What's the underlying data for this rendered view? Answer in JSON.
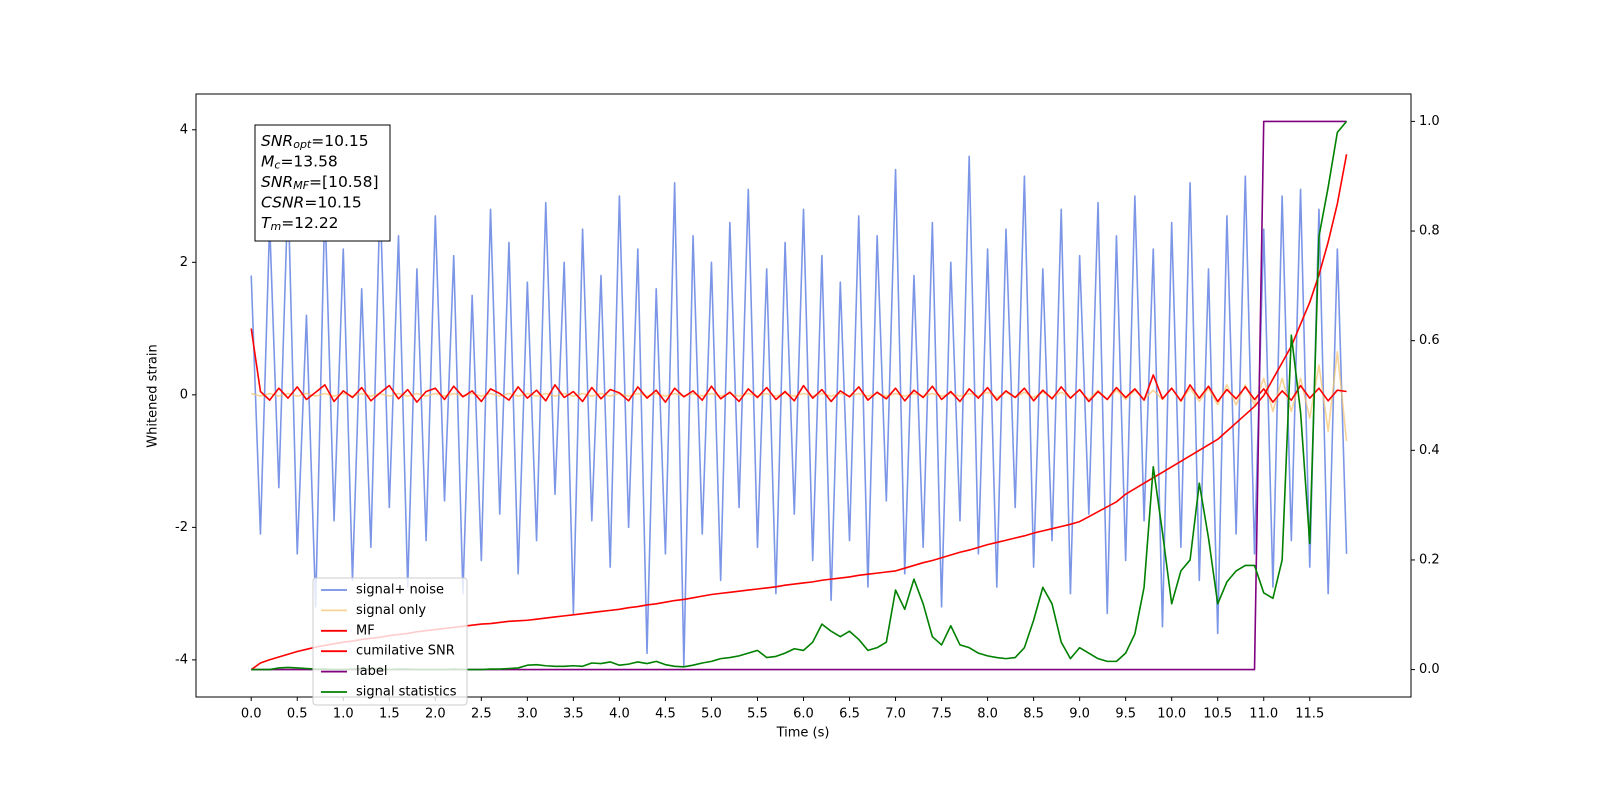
{
  "chart_data": {
    "type": "line",
    "xlabel": "Time (s)",
    "ylabel": "Whitened strain",
    "xlim": [
      -0.6,
      12.6
    ],
    "ylim": [
      -4.56,
      4.54
    ],
    "y2lim": [
      -0.05,
      1.05
    ],
    "xticks": [
      {
        "value": 0,
        "label": "0.0"
      },
      0.5,
      {
        "value": 1,
        "label": "1.0"
      },
      1.5,
      {
        "value": 2,
        "label": "2.0"
      },
      2.5,
      {
        "value": 3,
        "label": "3.0"
      },
      3.5,
      {
        "value": 4,
        "label": "4.0"
      },
      4.5,
      {
        "value": 5,
        "label": "5.0"
      },
      5.5,
      {
        "value": 6,
        "label": "6.0"
      },
      6.5,
      {
        "value": 7,
        "label": "7.0"
      },
      7.5,
      {
        "value": 8,
        "label": "8.0"
      },
      8.5,
      {
        "value": 9,
        "label": "9.0"
      },
      9.5,
      {
        "value": 10,
        "label": "10.0"
      },
      10.5,
      {
        "value": 11,
        "label": "11.0"
      },
      11.5
    ],
    "yticks": [
      -4,
      -2,
      0,
      2,
      4
    ],
    "y2ticks": [
      {
        "value": 0,
        "label": "0.0"
      },
      0.2,
      0.4,
      0.6,
      0.8,
      {
        "value": 1,
        "label": "1.0"
      }
    ],
    "legend": "best",
    "annotation": [
      {
        "symbol": "SNR",
        "subscript": "opt",
        "text": "=10.15"
      },
      {
        "symbol": "M",
        "subscript": "c",
        "text": "=13.58"
      },
      {
        "symbol": "SNR",
        "subscript": "MF",
        "text": "=[10.58]"
      },
      {
        "symbol": "CSNR",
        "text": "=10.15"
      },
      {
        "symbol": "T",
        "subscript": "m",
        "text": "=12.22"
      }
    ],
    "x": [
      0.0,
      0.1,
      0.2,
      0.3,
      0.4,
      0.5,
      0.6,
      0.7,
      0.8,
      0.9,
      1.0,
      1.1,
      1.2,
      1.3,
      1.4,
      1.5,
      1.6,
      1.7,
      1.8,
      1.9,
      2.0,
      2.1,
      2.2,
      2.3,
      2.4,
      2.5,
      2.6,
      2.7,
      2.8,
      2.9,
      3.0,
      3.1,
      3.2,
      3.3,
      3.4,
      3.5,
      3.6,
      3.7,
      3.8,
      3.9,
      4.0,
      4.1,
      4.2,
      4.3,
      4.4,
      4.5,
      4.6,
      4.7,
      4.8,
      4.9,
      5.0,
      5.1,
      5.2,
      5.3,
      5.4,
      5.5,
      5.6,
      5.7,
      5.8,
      5.9,
      6.0,
      6.1,
      6.2,
      6.3,
      6.4,
      6.5,
      6.6,
      6.7,
      6.8,
      6.9,
      7.0,
      7.1,
      7.2,
      7.3,
      7.4,
      7.5,
      7.6,
      7.7,
      7.8,
      7.9,
      8.0,
      8.1,
      8.2,
      8.3,
      8.4,
      8.5,
      8.6,
      8.7,
      8.8,
      8.9,
      9.0,
      9.1,
      9.2,
      9.3,
      9.4,
      9.5,
      9.6,
      9.7,
      9.8,
      9.9,
      10.0,
      10.1,
      10.2,
      10.3,
      10.4,
      10.5,
      10.6,
      10.7,
      10.8,
      10.9,
      11.0,
      11.1,
      11.2,
      11.3,
      11.4,
      11.5,
      11.6,
      11.7,
      11.8,
      11.9
    ],
    "series": [
      {
        "name": "signal+ noise",
        "color": "#7590e6",
        "values": [
          1.8,
          -2.1,
          2.6,
          -1.4,
          3.1,
          -2.4,
          1.2,
          -3.2,
          2.9,
          -1.9,
          2.2,
          -2.8,
          1.6,
          -2.3,
          3.0,
          -1.7,
          2.4,
          -2.9,
          1.9,
          -2.2,
          2.7,
          -1.6,
          2.1,
          -3.0,
          1.5,
          -2.5,
          2.8,
          -1.8,
          2.3,
          -2.7,
          1.7,
          -2.2,
          2.9,
          -1.5,
          2.0,
          -3.3,
          2.5,
          -1.9,
          1.8,
          -2.6,
          3.0,
          -2.0,
          2.2,
          -3.9,
          1.6,
          -2.4,
          3.2,
          -4.1,
          2.4,
          -2.1,
          2.0,
          -2.8,
          2.6,
          -1.7,
          3.1,
          -2.3,
          1.9,
          -3.0,
          2.3,
          -1.8,
          2.8,
          -2.5,
          2.1,
          -3.1,
          1.7,
          -2.2,
          2.7,
          -2.9,
          2.4,
          -1.6,
          3.4,
          -2.7,
          1.8,
          -2.3,
          2.6,
          -3.2,
          2.0,
          -1.9,
          3.6,
          -2.4,
          2.2,
          -2.9,
          2.5,
          -1.7,
          3.3,
          -2.6,
          1.9,
          -2.2,
          2.8,
          -3.0,
          2.1,
          -1.8,
          2.9,
          -3.3,
          2.4,
          -2.5,
          3.0,
          -1.9,
          2.2,
          -3.5,
          2.6,
          -2.3,
          3.2,
          -2.8,
          1.9,
          -3.6,
          2.7,
          -2.1,
          3.3,
          -2.4,
          2.5,
          -2.9,
          3.0,
          -2.2,
          3.1,
          -2.6,
          2.8,
          -3.0,
          2.2,
          -2.4
        ]
      },
      {
        "name": "signal only",
        "color": "#f5c26b",
        "values": [
          0.02,
          -0.02,
          0.02,
          -0.02,
          0.02,
          -0.02,
          0.02,
          -0.02,
          0.02,
          -0.02,
          0.02,
          -0.02,
          0.02,
          -0.02,
          0.02,
          -0.02,
          0.02,
          -0.02,
          0.02,
          -0.02,
          0.02,
          -0.02,
          0.02,
          -0.02,
          0.02,
          -0.02,
          0.02,
          -0.02,
          0.02,
          -0.02,
          0.02,
          -0.02,
          0.02,
          -0.02,
          0.02,
          -0.02,
          0.02,
          -0.02,
          0.02,
          -0.02,
          0.02,
          -0.02,
          0.02,
          -0.02,
          0.02,
          -0.02,
          0.02,
          -0.02,
          0.02,
          -0.02,
          0.02,
          -0.02,
          0.02,
          -0.02,
          0.02,
          -0.02,
          0.02,
          -0.02,
          0.02,
          -0.02,
          0.02,
          -0.02,
          0.02,
          -0.02,
          0.02,
          -0.02,
          0.02,
          -0.02,
          0.02,
          -0.02,
          0.02,
          -0.02,
          0.02,
          -0.02,
          0.02,
          -0.02,
          0.02,
          -0.02,
          0.02,
          -0.02,
          0.04,
          -0.04,
          0.04,
          -0.04,
          0.04,
          -0.04,
          0.04,
          -0.04,
          0.04,
          -0.04,
          0.07,
          -0.07,
          0.07,
          -0.07,
          0.07,
          -0.07,
          0.07,
          -0.07,
          0.07,
          -0.07,
          0.1,
          -0.1,
          0.1,
          -0.1,
          0.1,
          -0.15,
          0.15,
          -0.15,
          0.15,
          -0.15,
          0.25,
          -0.25,
          0.25,
          -0.25,
          0.25,
          -0.35,
          0.45,
          -0.55,
          0.65,
          -0.7
        ]
      },
      {
        "name": "MF",
        "color": "#ff0000",
        "values": [
          1.0,
          0.05,
          -0.08,
          0.1,
          -0.05,
          0.12,
          -0.07,
          0.04,
          0.15,
          -0.1,
          0.06,
          -0.04,
          0.11,
          -0.09,
          0.03,
          0.14,
          -0.06,
          0.08,
          -0.11,
          0.05,
          0.1,
          -0.07,
          0.13,
          -0.03,
          0.06,
          -0.1,
          0.09,
          0.02,
          -0.08,
          0.12,
          -0.05,
          0.07,
          -0.09,
          0.15,
          -0.04,
          0.05,
          -0.1,
          0.11,
          -0.06,
          0.08,
          0.03,
          -0.09,
          0.12,
          -0.05,
          0.07,
          -0.11,
          0.1,
          -0.03,
          0.06,
          -0.08,
          0.13,
          -0.06,
          0.04,
          -0.1,
          0.09,
          -0.04,
          0.11,
          -0.07,
          0.05,
          -0.09,
          0.14,
          -0.05,
          0.08,
          -0.1,
          0.06,
          -0.03,
          0.12,
          -0.08,
          0.04,
          -0.06,
          0.1,
          -0.09,
          0.07,
          -0.04,
          0.13,
          -0.07,
          0.05,
          -0.1,
          0.09,
          -0.05,
          0.11,
          -0.08,
          0.06,
          -0.04,
          0.1,
          -0.09,
          0.07,
          -0.06,
          0.12,
          -0.05,
          0.08,
          -0.1,
          0.05,
          -0.07,
          0.11,
          -0.04,
          0.09,
          -0.08,
          0.3,
          -0.06,
          0.1,
          -0.09,
          0.15,
          -0.05,
          0.13,
          -0.1,
          0.08,
          -0.06,
          0.12,
          -0.07,
          0.09,
          -0.11,
          0.06,
          -0.08,
          0.14,
          -0.05,
          0.1,
          -0.09,
          0.07,
          0.05
        ]
      },
      {
        "name": "cumilative SNR",
        "color": "#ff0000",
        "axis": "y2",
        "values": [
          0.0,
          0.012,
          0.018,
          0.023,
          0.028,
          0.033,
          0.037,
          0.041,
          0.044,
          0.047,
          0.05,
          0.052,
          0.055,
          0.057,
          0.059,
          0.062,
          0.064,
          0.066,
          0.069,
          0.071,
          0.073,
          0.075,
          0.077,
          0.079,
          0.081,
          0.083,
          0.084,
          0.086,
          0.088,
          0.089,
          0.09,
          0.092,
          0.094,
          0.096,
          0.098,
          0.1,
          0.102,
          0.104,
          0.106,
          0.108,
          0.11,
          0.113,
          0.115,
          0.118,
          0.12,
          0.123,
          0.126,
          0.128,
          0.131,
          0.134,
          0.137,
          0.139,
          0.141,
          0.143,
          0.145,
          0.147,
          0.149,
          0.151,
          0.154,
          0.156,
          0.158,
          0.16,
          0.163,
          0.165,
          0.167,
          0.169,
          0.172,
          0.174,
          0.176,
          0.178,
          0.18,
          0.185,
          0.19,
          0.195,
          0.199,
          0.204,
          0.209,
          0.214,
          0.218,
          0.223,
          0.228,
          0.232,
          0.236,
          0.24,
          0.244,
          0.249,
          0.253,
          0.257,
          0.261,
          0.265,
          0.27,
          0.279,
          0.288,
          0.297,
          0.306,
          0.32,
          0.33,
          0.34,
          0.35,
          0.36,
          0.37,
          0.38,
          0.39,
          0.4,
          0.41,
          0.42,
          0.435,
          0.45,
          0.465,
          0.48,
          0.5,
          0.53,
          0.56,
          0.59,
          0.63,
          0.67,
          0.72,
          0.78,
          0.85,
          0.94
        ]
      },
      {
        "name": "label",
        "color": "#800080",
        "axis": "y2",
        "values": [
          0,
          0,
          0,
          0,
          0,
          0,
          0,
          0,
          0,
          0,
          0,
          0,
          0,
          0,
          0,
          0,
          0,
          0,
          0,
          0,
          0,
          0,
          0,
          0,
          0,
          0,
          0,
          0,
          0,
          0,
          0,
          0,
          0,
          0,
          0,
          0,
          0,
          0,
          0,
          0,
          0,
          0,
          0,
          0,
          0,
          0,
          0,
          0,
          0,
          0,
          0,
          0,
          0,
          0,
          0,
          0,
          0,
          0,
          0,
          0,
          0,
          0,
          0,
          0,
          0,
          0,
          0,
          0,
          0,
          0,
          0,
          0,
          0,
          0,
          0,
          0,
          0,
          0,
          0,
          0,
          0,
          0,
          0,
          0,
          0,
          0,
          0,
          0,
          0,
          0,
          0,
          0,
          0,
          0,
          0,
          0,
          0,
          0,
          0,
          0,
          0,
          0,
          0,
          0,
          0,
          0,
          0,
          0,
          0,
          0,
          1,
          1,
          1,
          1,
          1,
          1,
          1,
          1,
          1,
          1
        ]
      },
      {
        "name": "signal statistics",
        "color": "#008000",
        "axis": "y2",
        "values": [
          0.0,
          0.0,
          0.0,
          0.003,
          0.004,
          0.003,
          0.002,
          0.001,
          0.001,
          0.0,
          0.0,
          0.001,
          0.002,
          0.001,
          0.001,
          0.0,
          0.001,
          0.001,
          0.0,
          0.0,
          0.0,
          0.0,
          0.001,
          0.0,
          0.0,
          0.0,
          0.001,
          0.001,
          0.002,
          0.003,
          0.008,
          0.009,
          0.007,
          0.006,
          0.006,
          0.007,
          0.006,
          0.012,
          0.011,
          0.014,
          0.008,
          0.01,
          0.014,
          0.011,
          0.015,
          0.009,
          0.006,
          0.005,
          0.008,
          0.012,
          0.015,
          0.02,
          0.022,
          0.025,
          0.03,
          0.035,
          0.022,
          0.024,
          0.03,
          0.038,
          0.035,
          0.05,
          0.083,
          0.07,
          0.06,
          0.07,
          0.055,
          0.035,
          0.04,
          0.05,
          0.145,
          0.11,
          0.165,
          0.12,
          0.06,
          0.045,
          0.08,
          0.045,
          0.04,
          0.03,
          0.025,
          0.022,
          0.02,
          0.022,
          0.04,
          0.09,
          0.15,
          0.12,
          0.05,
          0.02,
          0.04,
          0.03,
          0.02,
          0.015,
          0.015,
          0.03,
          0.065,
          0.15,
          0.37,
          0.25,
          0.12,
          0.18,
          0.2,
          0.34,
          0.24,
          0.12,
          0.16,
          0.18,
          0.19,
          0.19,
          0.14,
          0.13,
          0.2,
          0.61,
          0.47,
          0.23,
          0.79,
          0.88,
          0.98,
          1.0
        ]
      }
    ]
  }
}
